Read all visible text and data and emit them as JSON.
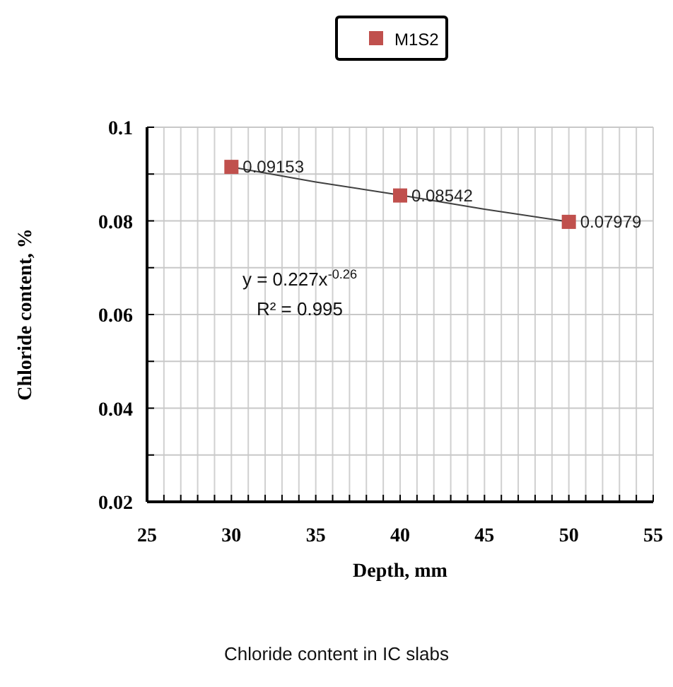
{
  "chart_data": {
    "type": "scatter",
    "xlabel": "Depth, mm",
    "ylabel": "Chloride content, %",
    "xlim": [
      25,
      55
    ],
    "ylim": [
      0.02,
      0.1
    ],
    "xticks": [
      25,
      {
        "value": 26,
        "label": null
      },
      {
        "value": 27,
        "label": null
      },
      {
        "value": 28,
        "label": null
      },
      {
        "value": 29,
        "label": null
      },
      30,
      {
        "value": 31,
        "label": null
      },
      {
        "value": 32,
        "label": null
      },
      {
        "value": 33,
        "label": null
      },
      {
        "value": 34,
        "label": null
      },
      35,
      {
        "value": 36,
        "label": null
      },
      {
        "value": 37,
        "label": null
      },
      {
        "value": 38,
        "label": null
      },
      {
        "value": 39,
        "label": null
      },
      40,
      {
        "value": 41,
        "label": null
      },
      {
        "value": 42,
        "label": null
      },
      {
        "value": 43,
        "label": null
      },
      {
        "value": 44,
        "label": null
      },
      45,
      {
        "value": 46,
        "label": null
      },
      {
        "value": 47,
        "label": null
      },
      {
        "value": 48,
        "label": null
      },
      {
        "value": 49,
        "label": null
      },
      50,
      {
        "value": 51,
        "label": null
      },
      {
        "value": 52,
        "label": null
      },
      {
        "value": 53,
        "label": null
      },
      {
        "value": 54,
        "label": null
      },
      55
    ],
    "yticks": [
      {
        "value": 0.02,
        "label": "0.02"
      },
      {
        "value": 0.03,
        "label": null
      },
      {
        "value": 0.04,
        "label": "0.04"
      },
      {
        "value": 0.05,
        "label": null
      },
      {
        "value": 0.06,
        "label": "0.06"
      },
      {
        "value": 0.07,
        "label": null
      },
      {
        "value": 0.08,
        "label": "0.08"
      },
      {
        "value": 0.09,
        "label": null
      },
      {
        "value": 0.1,
        "label": "0.1"
      }
    ],
    "grid": true,
    "legend": "top",
    "series": [
      {
        "name": "M1S2",
        "marker": "square",
        "color": "#c0504d",
        "x": [
          30,
          40,
          50
        ],
        "values": [
          0.09153,
          0.08542,
          0.07979
        ],
        "value_labels": [
          "0.09153",
          "0.08542",
          "0.07979"
        ]
      },
      {
        "type": "line",
        "color": "#404040",
        "x": [
          30,
          35,
          40,
          45,
          50
        ],
        "values": [
          0.0915,
          0.0883,
          0.0855,
          0.0825,
          0.0798
        ],
        "line_style": "solid",
        "marker": "none"
      }
    ],
    "annotations": [
      "y = 0.227x$^{-0.26}$",
      "R² = 0.995",
      "Chloride content in IC slabs"
    ]
  }
}
